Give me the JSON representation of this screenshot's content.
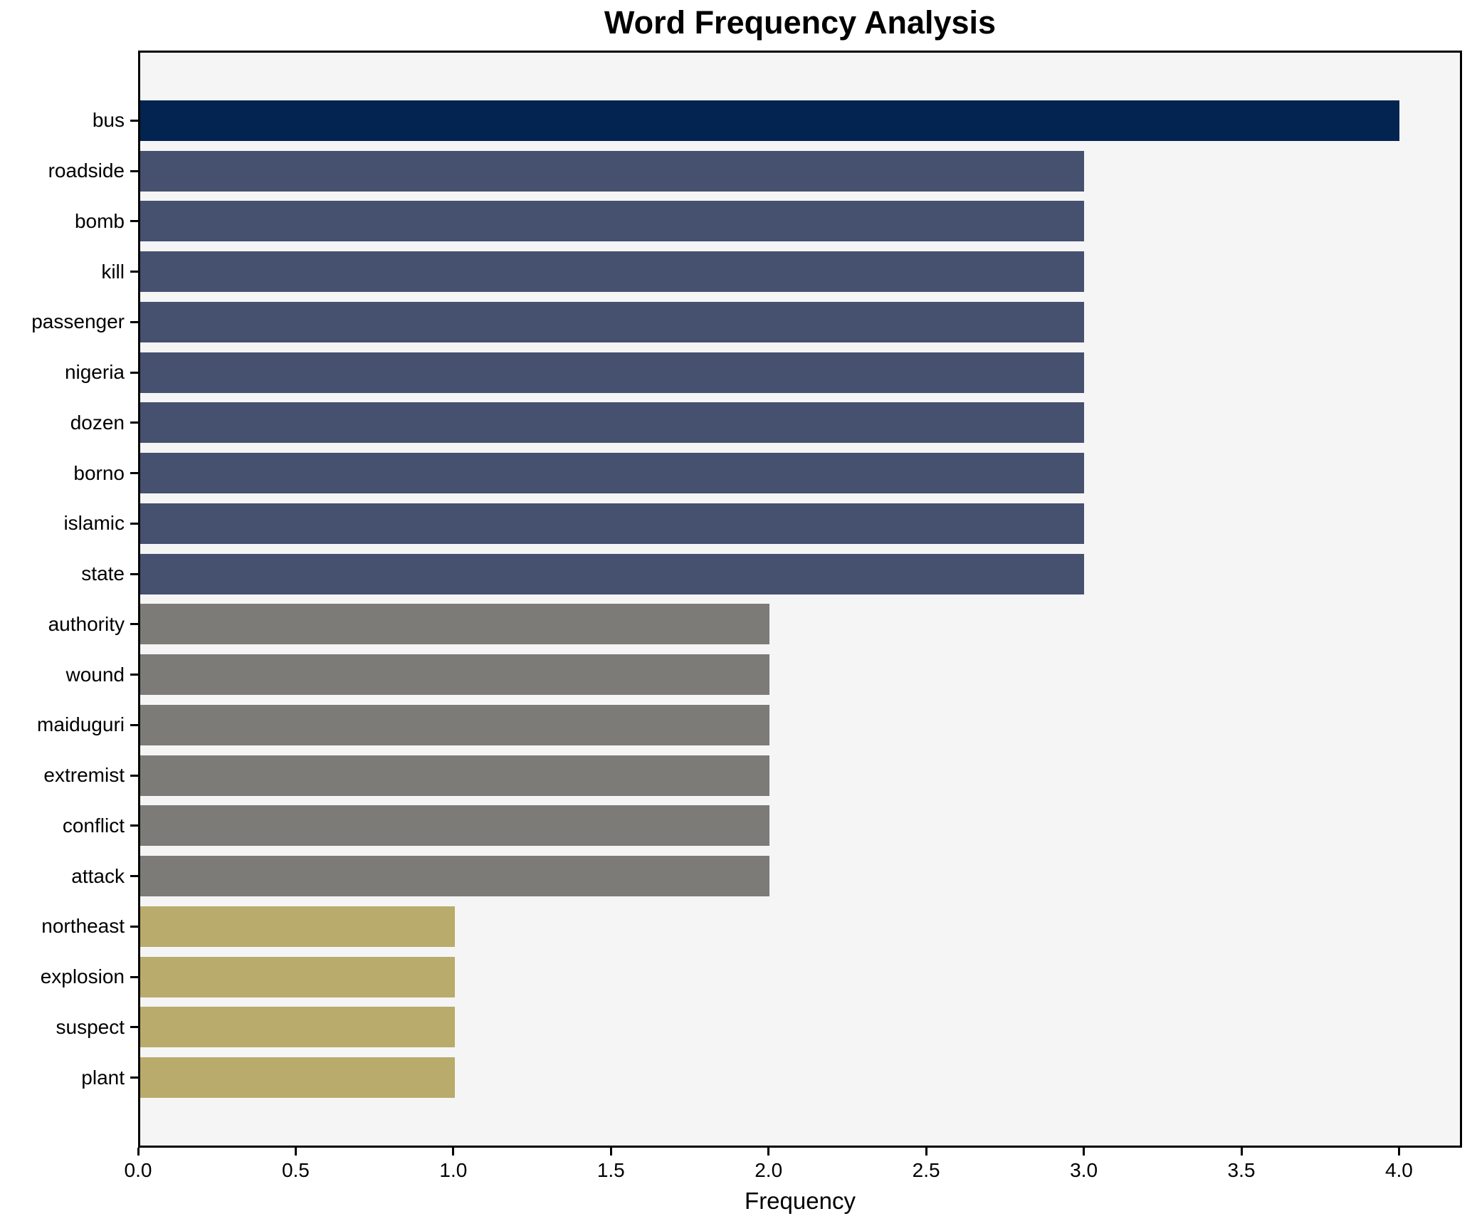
{
  "chart_data": {
    "type": "bar",
    "orientation": "horizontal",
    "title": "Word Frequency Analysis",
    "xlabel": "Frequency",
    "ylabel": "",
    "categories": [
      "bus",
      "roadside",
      "bomb",
      "kill",
      "passenger",
      "nigeria",
      "dozen",
      "borno",
      "islamic",
      "state",
      "authority",
      "wound",
      "maiduguri",
      "extremist",
      "conflict",
      "attack",
      "northeast",
      "explosion",
      "suspect",
      "plant"
    ],
    "values": [
      4,
      3,
      3,
      3,
      3,
      3,
      3,
      3,
      3,
      3,
      2,
      2,
      2,
      2,
      2,
      2,
      1,
      1,
      1,
      1
    ],
    "bar_colors": [
      "#032350",
      "#46506f",
      "#46506f",
      "#46506f",
      "#46506f",
      "#46506f",
      "#46506f",
      "#46506f",
      "#46506f",
      "#46506f",
      "#7c7b77",
      "#7c7b77",
      "#7c7b77",
      "#7c7b77",
      "#7c7b77",
      "#7c7b77",
      "#b9ab6b",
      "#b9ab6b",
      "#b9ab6b",
      "#b9ab6b"
    ],
    "value_color_map": {
      "4": "#032350",
      "3": "#46506f",
      "2": "#7c7b77",
      "1": "#b9ab6b"
    },
    "xlim": [
      0.0,
      4.2
    ],
    "xticks": [
      0.0,
      0.5,
      1.0,
      1.5,
      2.0,
      2.5,
      3.0,
      3.5,
      4.0
    ],
    "xtick_labels": [
      "0.0",
      "0.5",
      "1.0",
      "1.5",
      "2.0",
      "2.5",
      "3.0",
      "3.5",
      "4.0"
    ],
    "grid": false,
    "legend": "none",
    "plot_bg": "#f5f5f6",
    "figure_bg": "#ffffff"
  }
}
